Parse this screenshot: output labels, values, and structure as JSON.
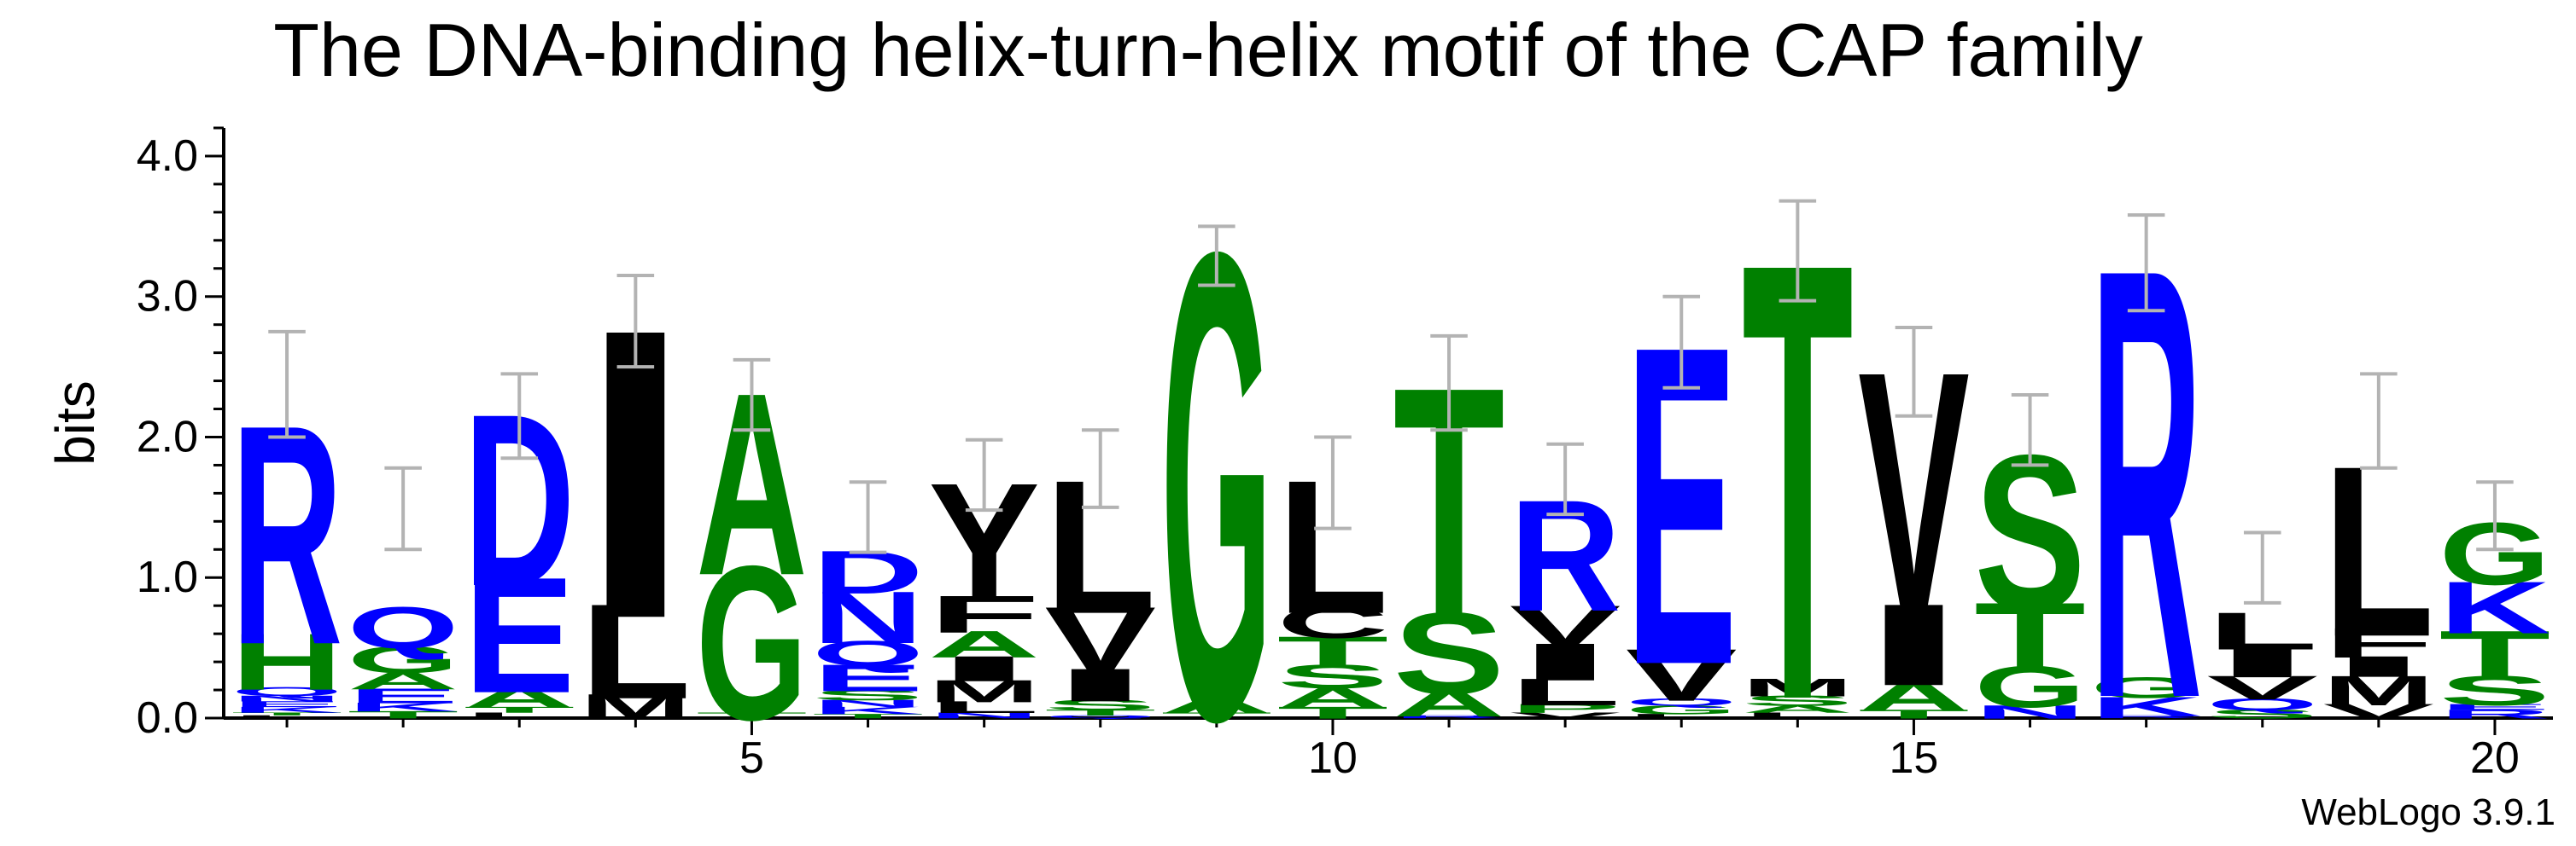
{
  "chart_data": {
    "type": "sequence-logo",
    "title": "The DNA-binding helix-turn-helix motif of the CAP family",
    "ylabel": "bits",
    "ylim": [
      0,
      4.2
    ],
    "y_ticks": [
      "0.0",
      "1.0",
      "2.0",
      "3.0",
      "4.0"
    ],
    "x_ticks": [
      5,
      10,
      15,
      20
    ],
    "x_range": [
      1,
      20
    ],
    "credit": "WebLogo 3.9.1",
    "colors": {
      "blue": "#0000ff",
      "green": "#008000",
      "black": "#000000",
      "errorbar": "#b3b3b3"
    },
    "positions": [
      {
        "pos": 1,
        "err": [
          2.0,
          2.75
        ],
        "stack": [
          [
            "L",
            0.02,
            "black"
          ],
          [
            "T",
            0.02,
            "green"
          ],
          [
            "K",
            0.04,
            "blue"
          ],
          [
            "E",
            0.04,
            "blue"
          ],
          [
            "N",
            0.04,
            "blue"
          ],
          [
            "Q",
            0.06,
            "blue"
          ],
          [
            "H",
            0.38,
            "green"
          ],
          [
            "R",
            1.48,
            "blue"
          ]
        ]
      },
      {
        "pos": 2,
        "err": [
          1.2,
          1.78
        ],
        "stack": [
          [
            "T",
            0.05,
            "green"
          ],
          [
            "K",
            0.06,
            "blue"
          ],
          [
            "E",
            0.1,
            "blue"
          ],
          [
            "A",
            0.12,
            "green"
          ],
          [
            "G",
            0.18,
            "green"
          ],
          [
            "Q",
            0.28,
            "blue"
          ]
        ]
      },
      {
        "pos": 3,
        "err": [
          1.85,
          2.45
        ],
        "stack": [
          [
            "L",
            0.04,
            "black"
          ],
          [
            "T",
            0.04,
            "green"
          ],
          [
            "A",
            0.14,
            "green"
          ],
          [
            "E",
            0.78,
            "blue"
          ],
          [
            "D",
            1.16,
            "blue"
          ]
        ]
      },
      {
        "pos": 4,
        "err": [
          2.5,
          3.15
        ],
        "stack": [
          [
            "M",
            0.17,
            "black"
          ],
          [
            "L",
            0.64,
            "black"
          ],
          [
            "I",
            1.95,
            "black"
          ]
        ]
      },
      {
        "pos": 5,
        "err": [
          2.05,
          2.55
        ],
        "stack": [
          [
            "T",
            0.04,
            "green"
          ],
          [
            "G",
            1.04,
            "green"
          ],
          [
            "A",
            1.23,
            "green"
          ]
        ]
      },
      {
        "pos": 6,
        "err": [
          1.18,
          1.68
        ],
        "stack": [
          [
            "T",
            0.03,
            "green"
          ],
          [
            "K",
            0.05,
            "blue"
          ],
          [
            "N",
            0.05,
            "blue"
          ],
          [
            "S",
            0.07,
            "green"
          ],
          [
            "E",
            0.18,
            "blue"
          ],
          [
            "Q",
            0.17,
            "blue"
          ],
          [
            "N",
            0.35,
            "blue"
          ],
          [
            "D",
            0.29,
            "blue"
          ]
        ]
      },
      {
        "pos": 7,
        "err": [
          1.48,
          1.98
        ],
        "stack": [
          [
            "N",
            0.04,
            "blue"
          ],
          [
            "L",
            0.08,
            "black"
          ],
          [
            "M",
            0.15,
            "black"
          ],
          [
            "I",
            0.17,
            "black"
          ],
          [
            "A",
            0.18,
            "green"
          ],
          [
            "F",
            0.25,
            "black"
          ],
          [
            "Y",
            0.8,
            "black"
          ]
        ]
      },
      {
        "pos": 8,
        "err": [
          1.5,
          2.05
        ],
        "stack": [
          [
            "Q",
            0.02,
            "blue"
          ],
          [
            "T",
            0.04,
            "green"
          ],
          [
            "S",
            0.07,
            "green"
          ],
          [
            "I",
            0.22,
            "black"
          ],
          [
            "V",
            0.44,
            "black"
          ],
          [
            "L",
            0.9,
            "black"
          ]
        ]
      },
      {
        "pos": 9,
        "err": [
          3.08,
          3.5
        ],
        "stack": [
          [
            "T",
            0.04,
            "green"
          ],
          [
            "A",
            0.11,
            "green"
          ],
          [
            "G",
            3.15,
            "green"
          ]
        ]
      },
      {
        "pos": 10,
        "err": [
          1.35,
          2.0
        ],
        "stack": [
          [
            "T",
            0.08,
            "green"
          ],
          [
            "A",
            0.14,
            "green"
          ],
          [
            "S",
            0.16,
            "green"
          ],
          [
            "T",
            0.2,
            "green"
          ],
          [
            "C",
            0.21,
            "black"
          ],
          [
            "L",
            0.9,
            "black"
          ]
        ]
      },
      {
        "pos": 11,
        "err": [
          2.05,
          2.72
        ],
        "stack": [
          [
            "R",
            0.02,
            "blue"
          ],
          [
            "A",
            0.18,
            "green"
          ],
          [
            "S",
            0.55,
            "green"
          ],
          [
            "T",
            1.6,
            "green"
          ]
        ]
      },
      {
        "pos": 12,
        "err": [
          1.45,
          1.95
        ],
        "stack": [
          [
            "V",
            0.04,
            "black"
          ],
          [
            "P",
            0.06,
            "green"
          ],
          [
            "L",
            0.18,
            "black"
          ],
          [
            "I",
            0.25,
            "black"
          ],
          [
            "V",
            0.27,
            "black"
          ],
          [
            "R",
            0.75,
            "blue"
          ]
        ]
      },
      {
        "pos": 13,
        "err": [
          2.35,
          3.0
        ],
        "stack": [
          [
            "L",
            0.03,
            "black"
          ],
          [
            "G",
            0.06,
            "green"
          ],
          [
            "Q",
            0.05,
            "blue"
          ],
          [
            "V",
            0.35,
            "black"
          ],
          [
            "E",
            2.15,
            "blue"
          ]
        ]
      },
      {
        "pos": 14,
        "err": [
          2.97,
          3.68
        ],
        "stack": [
          [
            "L",
            0.04,
            "black"
          ],
          [
            "A",
            0.05,
            "green"
          ],
          [
            "S",
            0.07,
            "green"
          ],
          [
            "M",
            0.12,
            "black"
          ],
          [
            "T",
            2.95,
            "green"
          ]
        ]
      },
      {
        "pos": 15,
        "err": [
          2.15,
          2.78
        ],
        "stack": [
          [
            "T",
            0.06,
            "green"
          ],
          [
            "A",
            0.2,
            "green"
          ],
          [
            "I",
            0.55,
            "black"
          ],
          [
            "V",
            1.65,
            "black"
          ]
        ]
      },
      {
        "pos": 16,
        "err": [
          1.8,
          2.3
        ],
        "stack": [
          [
            "N",
            0.09,
            "blue"
          ],
          [
            "G",
            0.28,
            "green"
          ],
          [
            "T",
            0.45,
            "green"
          ],
          [
            "S",
            1.05,
            "green"
          ]
        ]
      },
      {
        "pos": 17,
        "err": [
          2.9,
          3.58
        ],
        "stack": [
          [
            "R",
            0.02,
            "blue"
          ],
          [
            "K",
            0.13,
            "blue"
          ],
          [
            "G",
            0.14,
            "green"
          ],
          [
            "R",
            2.9,
            "blue"
          ]
        ]
      },
      {
        "pos": 18,
        "err": [
          0.82,
          1.32
        ],
        "stack": [
          [
            "S",
            0.06,
            "green"
          ],
          [
            "Q",
            0.08,
            "blue"
          ],
          [
            "V",
            0.16,
            "black"
          ],
          [
            "I",
            0.2,
            "black"
          ],
          [
            "L",
            0.25,
            "black"
          ]
        ]
      },
      {
        "pos": 19,
        "err": [
          1.78,
          2.45
        ],
        "stack": [
          [
            "V",
            0.1,
            "black"
          ],
          [
            "M",
            0.2,
            "black"
          ],
          [
            "I",
            0.14,
            "black"
          ],
          [
            "F",
            0.2,
            "black"
          ],
          [
            "L",
            1.15,
            "black"
          ]
        ]
      },
      {
        "pos": 20,
        "err": [
          1.2,
          1.68
        ],
        "stack": [
          [
            "R",
            0.06,
            "blue"
          ],
          [
            "E",
            0.04,
            "blue"
          ],
          [
            "S",
            0.2,
            "green"
          ],
          [
            "T",
            0.32,
            "green"
          ],
          [
            "K",
            0.35,
            "blue"
          ],
          [
            "G",
            0.42,
            "green"
          ]
        ]
      }
    ]
  }
}
